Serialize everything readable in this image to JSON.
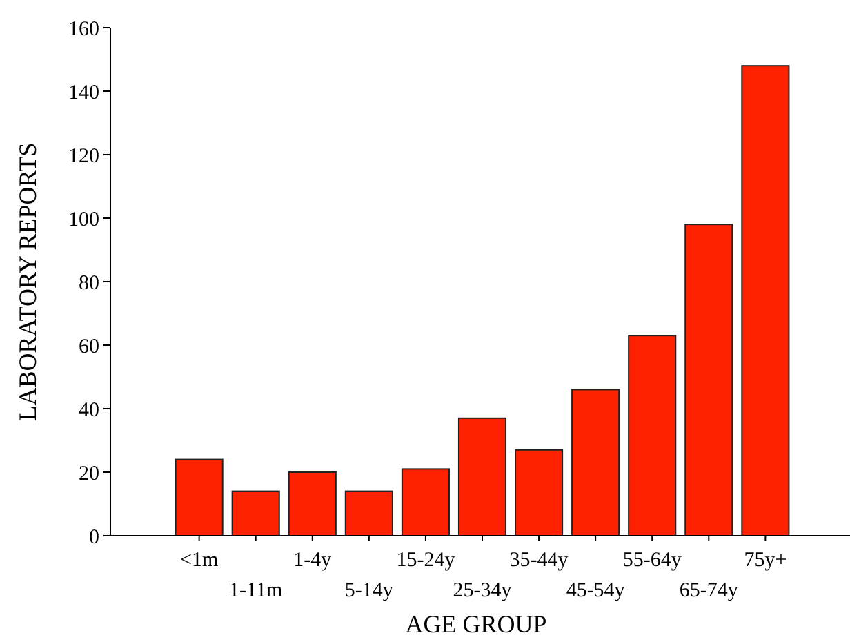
{
  "chart_data": {
    "type": "bar",
    "xlabel": "AGE GROUP",
    "ylabel": "LABORATORY REPORTS",
    "categories": [
      "<1m",
      "1-11m",
      "1-4y",
      "5-14y",
      "15-24y",
      "25-34y",
      "35-44y",
      "45-54y",
      "55-64y",
      "65-74y",
      "75y+"
    ],
    "values": [
      24,
      14,
      20,
      14,
      21,
      37,
      27,
      46,
      63,
      98,
      148
    ],
    "color": "#ff2200",
    "ylim": [
      0,
      160
    ],
    "yticks": [
      0,
      20,
      40,
      60,
      80,
      100,
      120,
      140,
      160
    ],
    "grid": false
  }
}
